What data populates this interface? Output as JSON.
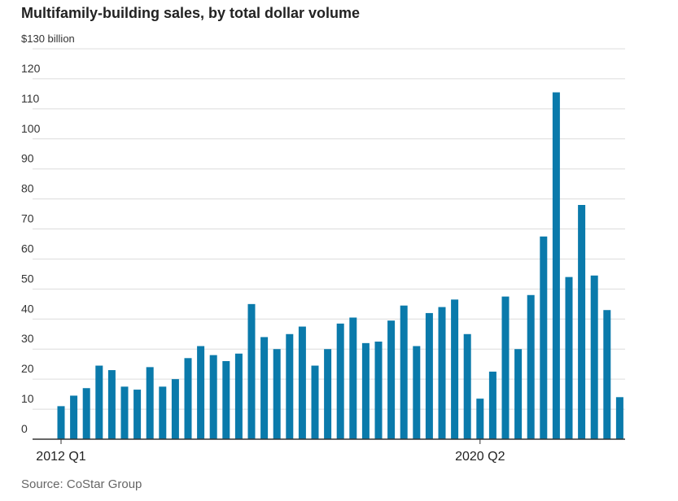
{
  "title": "Multifamily-building sales, by total dollar volume",
  "source": "Source: CoStar Group",
  "colors": {
    "bar": "#0a7aab",
    "grid": "#dcdcdc",
    "axis": "#333333"
  },
  "chart_data": {
    "type": "bar",
    "title": "Multifamily-building sales, by total dollar volume",
    "ylabel": "$130 billion",
    "ylim": [
      0,
      130
    ],
    "yticks": [
      0,
      10,
      20,
      30,
      40,
      50,
      60,
      70,
      80,
      90,
      100,
      110,
      120,
      130
    ],
    "ytick_labels": [
      "0",
      "10",
      "20",
      "30",
      "40",
      "50",
      "60",
      "70",
      "80",
      "90",
      "100",
      "110",
      "120",
      "$130 billion"
    ],
    "x_tick_labels": [
      {
        "index": 0,
        "label": "2012 Q1"
      },
      {
        "index": 33,
        "label": "2020 Q2"
      }
    ],
    "grid": true,
    "values": [
      11,
      14.5,
      17,
      24.5,
      23,
      17.5,
      16.5,
      24,
      17.5,
      20,
      27,
      31,
      28,
      26,
      28.5,
      45,
      34,
      30,
      35,
      37.5,
      24.5,
      30,
      38.5,
      40.5,
      32,
      32.5,
      39.5,
      44.5,
      31,
      42,
      44,
      46.5,
      35,
      13.5,
      22.5,
      47.5,
      30,
      48,
      67.5,
      115.5,
      54,
      78,
      54.5,
      43,
      14
    ]
  }
}
